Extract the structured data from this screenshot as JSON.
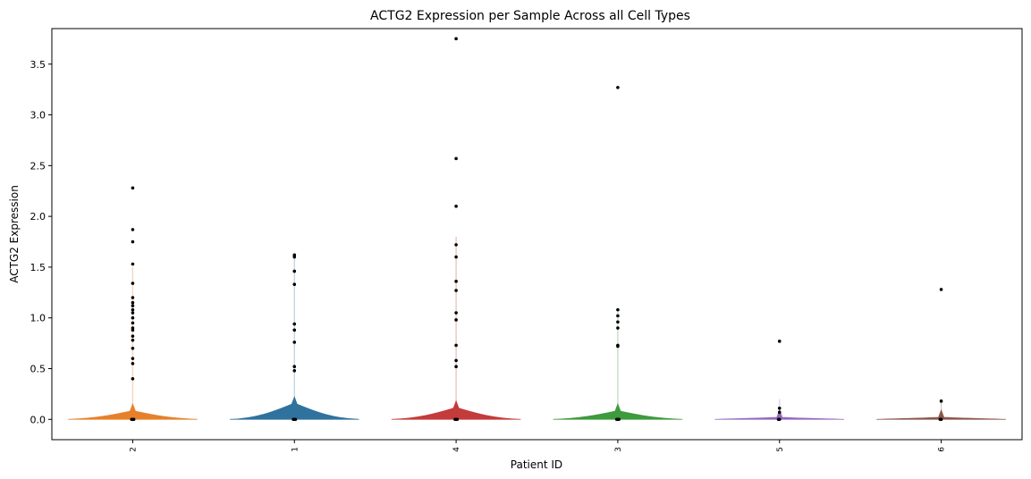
{
  "chart_data": {
    "type": "violin",
    "title": "ACTG2 Expression per Sample Across all Cell Types",
    "xlabel": "Patient ID",
    "ylabel": "ACTG2 Expression",
    "ylim": [
      -0.2,
      3.85
    ],
    "yticks": [
      "0.0",
      "0.5",
      "1.0",
      "1.5",
      "2.0",
      "2.5",
      "3.0",
      "3.5"
    ],
    "grid": false,
    "categories": [
      "2",
      "1",
      "4",
      "3",
      "5",
      "6"
    ],
    "series": [
      {
        "name": "2",
        "color": "#e6802a",
        "violin_peak": 0.08,
        "violin_tail": 1.5,
        "points": [
          0,
          0,
          0,
          0.4,
          0.55,
          0.6,
          0.7,
          0.78,
          0.82,
          0.88,
          0.9,
          0.95,
          1.0,
          1.05,
          1.08,
          1.12,
          1.15,
          1.2,
          1.34,
          1.53,
          1.75,
          1.87,
          2.28
        ]
      },
      {
        "name": "1",
        "color": "#30729e",
        "violin_peak": 0.15,
        "violin_tail": 1.6,
        "points": [
          0,
          0,
          0,
          0.48,
          0.52,
          0.76,
          0.88,
          0.94,
          1.33,
          1.46,
          1.6,
          1.62
        ]
      },
      {
        "name": "4",
        "color": "#c43b3b",
        "violin_peak": 0.11,
        "violin_tail": 1.8,
        "points": [
          0,
          0,
          0,
          0.52,
          0.58,
          0.73,
          0.98,
          1.05,
          1.27,
          1.36,
          1.6,
          1.72,
          2.1,
          2.57,
          3.75
        ]
      },
      {
        "name": "3",
        "color": "#3d9a3d",
        "violin_peak": 0.08,
        "violin_tail": 1.1,
        "points": [
          0,
          0,
          0,
          0.72,
          0.73,
          0.9,
          0.96,
          1.02,
          1.08,
          3.27
        ]
      },
      {
        "name": "5",
        "color": "#9467bd",
        "violin_peak": 0.02,
        "violin_tail": 0.2,
        "points": [
          0,
          0,
          0.07,
          0.11,
          0.77
        ]
      },
      {
        "name": "6",
        "color": "#8c564b",
        "violin_peak": 0.02,
        "violin_tail": 0.2,
        "points": [
          0,
          0,
          0.18,
          1.28
        ]
      }
    ]
  }
}
